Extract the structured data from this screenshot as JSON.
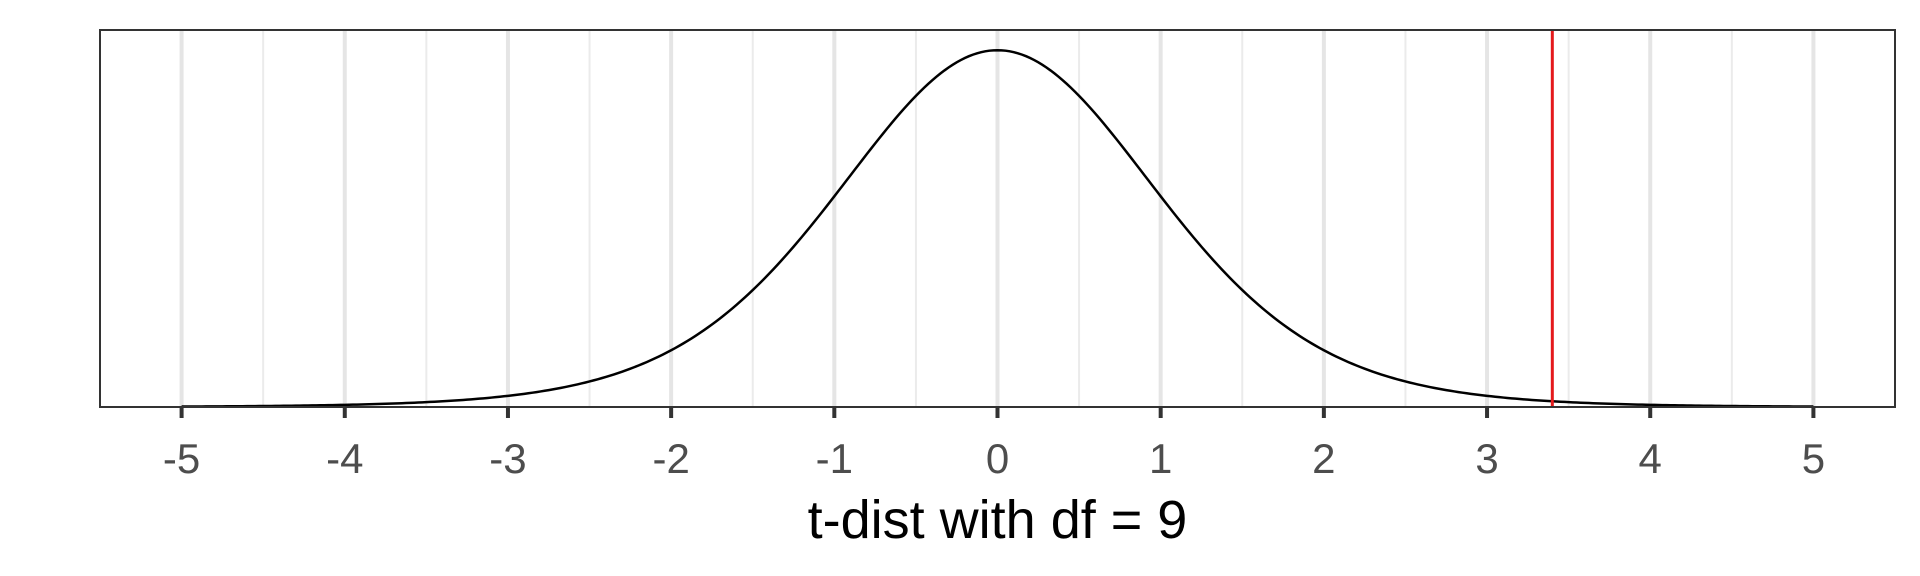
{
  "chart_data": {
    "type": "line",
    "title": "",
    "xlabel": "t-dist with df = 9",
    "ylabel": "",
    "df": 9,
    "xlim": [
      -5.5,
      5.5
    ],
    "ylim": [
      0,
      0.41
    ],
    "x_ticks": [
      -5,
      -4,
      -3,
      -2,
      -1,
      0,
      1,
      2,
      3,
      4,
      5
    ],
    "x_tick_labels": [
      "-5",
      "-4",
      "-3",
      "-2",
      "-1",
      "0",
      "1",
      "2",
      "3",
      "4",
      "5"
    ],
    "x_minor_gridlines": [
      -4.5,
      -3.5,
      -2.5,
      -1.5,
      -0.5,
      0.5,
      1.5,
      2.5,
      3.5,
      4.5
    ],
    "y_ticks_shown": false,
    "grid": "vertical",
    "series": [
      {
        "x": [
          -5,
          -4.5,
          -4,
          -3.5,
          -3,
          -2.5,
          -2,
          -1.5,
          -1,
          -0.5,
          0,
          0.5,
          1,
          1.5,
          2,
          2.5,
          3,
          3.5,
          4,
          4.5,
          5
        ],
        "y": [
          0.0018,
          0.0033,
          0.0063,
          0.0118,
          0.0228,
          0.0435,
          0.0788,
          0.1309,
          0.2304,
          0.3391,
          0.388,
          0.3391,
          0.2304,
          0.1309,
          0.0788,
          0.0435,
          0.0228,
          0.0118,
          0.0063,
          0.0033,
          0.0018
        ]
      }
    ],
    "reference_line": {
      "x": 3.4,
      "color": "#e41a1c"
    },
    "colors": {
      "curve": "#000000",
      "grid_major": "#e5e5e5",
      "grid_minor": "#ebebeb",
      "panel_border": "#333333"
    }
  }
}
